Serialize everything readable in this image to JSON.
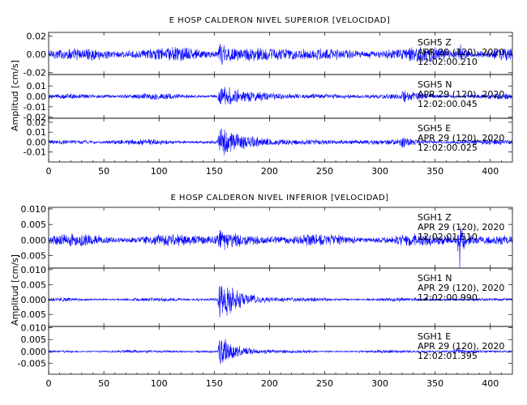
{
  "colors": {
    "trace": "#0000ff",
    "axes": "#000000",
    "background": "#ffffff"
  },
  "chart_data": [
    {
      "type": "line",
      "title": "E HOSP CALDERON NIVEL SUPERIOR [VELOCIDAD]",
      "ylabel": "Amplitud [cm/s]",
      "xlim": [
        0,
        420
      ],
      "x_ticks": [
        "0",
        "50",
        "100",
        "150",
        "200",
        "250",
        "300",
        "350",
        "400"
      ],
      "series": [
        {
          "name": "SGH5  Z",
          "date": "APR 29 (120), 2020",
          "time": "12:02:00.210",
          "ylim": [
            -0.022,
            0.024
          ],
          "y_ticks": [
            "0.02",
            "0.00",
            "-0.02"
          ],
          "y_tick_values": [
            0.02,
            0.0,
            -0.02
          ],
          "base_amplitude": 0.0085,
          "events": [
            {
              "t": 155,
              "amp": 0.012,
              "decay": 12
            },
            {
              "t": 372,
              "amp": 0.014,
              "decay": 3
            }
          ]
        },
        {
          "name": "SGH5  N",
          "date": "APR 29 (120), 2020",
          "time": "12:02:00.045",
          "ylim": [
            -0.021,
            0.021
          ],
          "y_ticks": [
            "0.01",
            "0.00",
            "-0.01",
            "-0.02"
          ],
          "y_tick_values": [
            0.01,
            0.0,
            -0.01,
            -0.02
          ],
          "base_amplitude": 0.0032,
          "events": [
            {
              "t": 155,
              "amp": 0.011,
              "decay": 20
            },
            {
              "t": 320,
              "amp": 0.004,
              "decay": 10
            }
          ]
        },
        {
          "name": "SGH5  E",
          "date": "APR 29 (120), 2020",
          "time": "12:02:00.025",
          "ylim": [
            -0.02,
            0.024
          ],
          "y_ticks": [
            "0.02",
            "0.01",
            "0.00",
            "-0.01"
          ],
          "y_tick_values": [
            0.02,
            0.01,
            0.0,
            -0.01
          ],
          "base_amplitude": 0.0032,
          "events": [
            {
              "t": 155,
              "amp": 0.016,
              "decay": 22
            },
            {
              "t": 320,
              "amp": 0.004,
              "decay": 10
            }
          ]
        }
      ]
    },
    {
      "type": "line",
      "title": "E HOSP CALDERON NIVEL INFERIOR [VELOCIDAD]",
      "ylabel": "Amplitud [cm/s]",
      "xlim": [
        0,
        420
      ],
      "x_ticks": [
        "0",
        "50",
        "100",
        "150",
        "200",
        "250",
        "300",
        "350",
        "400"
      ],
      "series": [
        {
          "name": "SGH1  Z",
          "date": "APR 29 (120), 2020",
          "time": "12:02:01.510",
          "ylim": [
            -0.009,
            0.0105
          ],
          "y_ticks": [
            "0.010",
            "0.005",
            "0.000",
            "-0.005"
          ],
          "y_tick_values": [
            0.01,
            0.005,
            0.0,
            -0.005
          ],
          "base_amplitude": 0.0022,
          "events": [
            {
              "t": 155,
              "amp": 0.004,
              "decay": 10
            },
            {
              "t": 372,
              "amp": 0.009,
              "decay": 3
            }
          ]
        },
        {
          "name": "SGH1  N",
          "date": "APR 29 (120), 2020",
          "time": "12:02:00.990",
          "ylim": [
            -0.009,
            0.0105
          ],
          "y_ticks": [
            "0.010",
            "0.005",
            "0.000",
            "-0.005"
          ],
          "y_tick_values": [
            0.01,
            0.005,
            0.0,
            -0.005
          ],
          "base_amplitude": 0.0007,
          "events": [
            {
              "t": 155,
              "amp": 0.0085,
              "decay": 16
            }
          ]
        },
        {
          "name": "SGH1  E",
          "date": "APR 29 (120), 2020",
          "time": "12:02:01.395",
          "ylim": [
            -0.0095,
            0.0105
          ],
          "y_ticks": [
            "0.010",
            "0.005",
            "0.000",
            "-0.005"
          ],
          "y_tick_values": [
            0.01,
            0.005,
            0.0,
            -0.005
          ],
          "base_amplitude": 0.0007,
          "events": [
            {
              "t": 155,
              "amp": 0.0075,
              "decay": 14
            },
            {
              "t": 370,
              "amp": 0.0015,
              "decay": 3
            }
          ]
        }
      ]
    }
  ]
}
